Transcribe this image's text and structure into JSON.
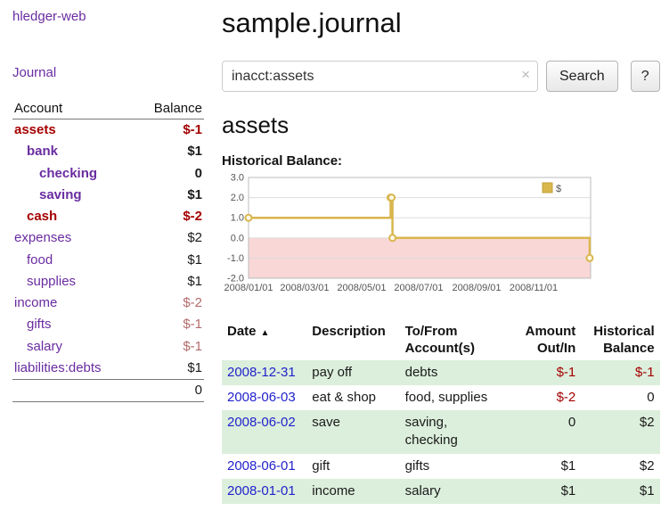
{
  "app": {
    "brand": "hledger-web",
    "nav_journal": "Journal"
  },
  "colors": {
    "link_purple": "#6a2ca0",
    "negative_red": "#a40000",
    "soft_negative_red": "#b36b6b",
    "date_blue": "#2222cc",
    "row_stripe_green": "#dcefdc",
    "chart_line_gold": "#d9b64e",
    "chart_negative_pink": "#f9d7d7"
  },
  "sidebar": {
    "columns": {
      "account": "Account",
      "balance": "Balance"
    },
    "accounts": [
      {
        "name": "assets",
        "balance": "$-1"
      },
      {
        "name": "bank",
        "balance": "$1"
      },
      {
        "name": "checking",
        "balance": "0"
      },
      {
        "name": "saving",
        "balance": "$1"
      },
      {
        "name": "cash",
        "balance": "$-2"
      },
      {
        "name": "expenses",
        "balance": "$2"
      },
      {
        "name": "food",
        "balance": "$1"
      },
      {
        "name": "supplies",
        "balance": "$1"
      },
      {
        "name": "income",
        "balance": "$-2"
      },
      {
        "name": "gifts",
        "balance": "$-1"
      },
      {
        "name": "salary",
        "balance": "$-1"
      },
      {
        "name": "liabilities:debts",
        "balance": "$1"
      }
    ],
    "total": "0"
  },
  "header": {
    "title": "sample.journal"
  },
  "search": {
    "value": "inacct:assets",
    "clear_icon": "×",
    "button": "Search",
    "help_button": "?"
  },
  "account_page": {
    "title": "assets",
    "chart_label": "Historical Balance:"
  },
  "chart_data": {
    "type": "line",
    "step": true,
    "title": "Historical Balance",
    "series": [
      {
        "name": "$",
        "x": [
          "2008-01-01",
          "2008-06-01",
          "2008-06-02",
          "2008-06-03",
          "2008-12-31"
        ],
        "y": [
          1,
          2,
          2,
          0,
          -1
        ]
      }
    ],
    "x_range": [
      "2008-01-01",
      "2009-01-01"
    ],
    "ylim": [
      -2,
      3
    ],
    "yticks": [
      3,
      2,
      1,
      0,
      -1,
      -2
    ],
    "xticks": [
      {
        "value": "2008-01-01",
        "label": "2008/01/01"
      },
      {
        "value": "2008-03-01",
        "label": "2008/03/01"
      },
      {
        "value": "2008-05-01",
        "label": "2008/05/01"
      },
      {
        "value": "2008-07-01",
        "label": "2008/07/01"
      },
      {
        "value": "2008-09-01",
        "label": "2008/09/01"
      },
      {
        "value": "2008-11-01",
        "label": "2008/11/01"
      }
    ],
    "legend": {
      "position": "top-right",
      "label": "$"
    },
    "grid": true,
    "colors": {
      "line": "#d9b64e",
      "negative_region": "#f9d7d7",
      "grid": "#dddddd"
    }
  },
  "register": {
    "sort_icon": "▲",
    "columns": [
      {
        "label": "Date"
      },
      {
        "label": "Description"
      },
      {
        "label": "To/From Account(s)"
      },
      {
        "label": "Amount Out/In"
      },
      {
        "label": "Historical Balance"
      }
    ],
    "rows": [
      {
        "date": "2008-12-31",
        "description": "pay off",
        "accounts": "debts",
        "amount": "$-1",
        "balance": "$-1"
      },
      {
        "date": "2008-06-03",
        "description": "eat & shop",
        "accounts": "food, supplies",
        "amount": "$-2",
        "balance": "0"
      },
      {
        "date": "2008-06-02",
        "description": "save",
        "accounts": "saving,\nchecking",
        "amount": "0",
        "balance": "$2"
      },
      {
        "date": "2008-06-01",
        "description": "gift",
        "accounts": "gifts",
        "amount": "$1",
        "balance": "$2"
      },
      {
        "date": "2008-01-01",
        "description": "income",
        "accounts": "salary",
        "amount": "$1",
        "balance": "$1"
      }
    ]
  }
}
